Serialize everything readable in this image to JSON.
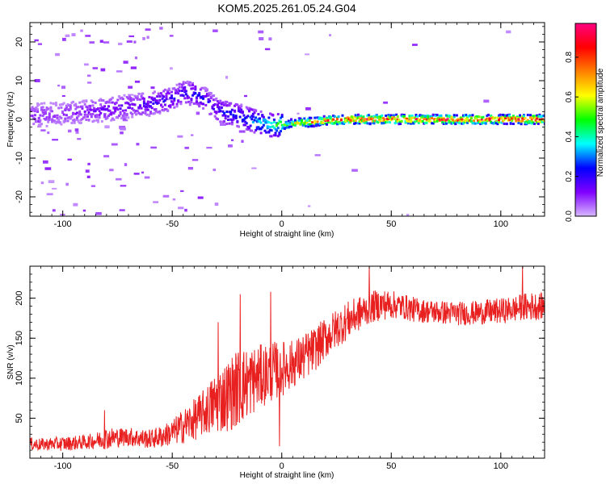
{
  "chart_data": [
    {
      "type": "heatmap",
      "title": "KOM5.2025.261.05.24.G04",
      "xlabel": "Height of straight line (km)",
      "ylabel": "Frequency (Hz)",
      "xlim": [
        -115,
        120
      ],
      "ylim": [
        -25,
        25
      ],
      "xticks": [
        -100,
        -50,
        0,
        50,
        100
      ],
      "yticks": [
        -20,
        -10,
        0,
        10,
        20
      ],
      "grid": false,
      "colorbar": {
        "label": "Normalized spectral amplitude",
        "range": [
          0,
          0.97
        ],
        "ticks": [
          "0.0",
          "0.2",
          "0.4",
          "0.6",
          "0.8"
        ],
        "colormap": [
          "#ff0080",
          "#ff0000",
          "#ff8000",
          "#ffff00",
          "#00ff00",
          "#00ffff",
          "#0000ff",
          "#8000ff",
          "#d8b8ff"
        ]
      },
      "ridge": {
        "name": "",
        "x": [
          -115,
          -100,
          -90,
          -80,
          -70,
          -60,
          -50,
          -45,
          -40,
          -35,
          -30,
          -25,
          -20,
          -15,
          -10,
          -5,
          0,
          5,
          10,
          20,
          30,
          50,
          70,
          90,
          110,
          120
        ],
        "y": [
          1.0,
          1.5,
          2.0,
          2.5,
          3.5,
          4.0,
          5.5,
          7.0,
          6.5,
          5.0,
          2.5,
          1.5,
          1.0,
          0.0,
          -1.0,
          -1.5,
          -1.5,
          -1.0,
          -0.8,
          -0.3,
          0.0,
          0.0,
          0.0,
          0.0,
          0.0,
          0.0
        ],
        "amplitude": [
          0.1,
          0.1,
          0.12,
          0.15,
          0.15,
          0.18,
          0.2,
          0.2,
          0.22,
          0.2,
          0.2,
          0.25,
          0.25,
          0.3,
          0.35,
          0.45,
          0.5,
          0.6,
          0.7,
          0.8,
          0.85,
          0.85,
          0.85,
          0.9,
          0.9,
          0.9
        ]
      }
    },
    {
      "type": "line",
      "title": "",
      "xlabel": "Height of straight line (km)",
      "ylabel": "SNR (v/v)",
      "xlim": [
        -115,
        120
      ],
      "ylim": [
        0,
        240
      ],
      "xticks": [
        -100,
        -50,
        0,
        50,
        100
      ],
      "yticks": [
        50,
        100,
        150,
        200
      ],
      "grid": false,
      "color": "#e82020",
      "series": [
        {
          "name": "",
          "x": [
            -115,
            -110,
            -105,
            -100,
            -95,
            -90,
            -85,
            -80,
            -75,
            -70,
            -65,
            -60,
            -55,
            -50,
            -45,
            -40,
            -35,
            -30,
            -25,
            -20,
            -15,
            -10,
            -5,
            0,
            5,
            10,
            15,
            20,
            25,
            30,
            35,
            40,
            45,
            50,
            55,
            60,
            65,
            70,
            75,
            80,
            85,
            90,
            95,
            100,
            105,
            110,
            115,
            120
          ],
          "y": [
            18,
            17,
            18,
            18,
            19,
            20,
            22,
            25,
            26,
            27,
            25,
            24,
            27,
            32,
            40,
            48,
            58,
            70,
            78,
            88,
            95,
            102,
            108,
            112,
            118,
            126,
            136,
            150,
            162,
            172,
            180,
            188,
            192,
            192,
            190,
            186,
            184,
            183,
            182,
            181,
            181,
            182,
            183,
            184,
            186,
            188,
            190,
            190
          ],
          "noise": [
            8,
            8,
            8,
            9,
            9,
            9,
            10,
            14,
            12,
            12,
            12,
            12,
            14,
            16,
            22,
            26,
            30,
            40,
            45,
            50,
            45,
            40,
            38,
            35,
            30,
            30,
            28,
            26,
            25,
            24,
            22,
            20,
            20,
            18,
            16,
            16,
            15,
            15,
            15,
            15,
            15,
            15,
            16,
            16,
            16,
            18,
            18,
            16
          ],
          "spikes": [
            {
              "x": -81,
              "y": 60
            },
            {
              "x": -29,
              "y": 170
            },
            {
              "x": -19,
              "y": 205
            },
            {
              "x": -5,
              "y": 208
            },
            {
              "x": -1,
              "y": 15
            },
            {
              "x": 40,
              "y": 240
            },
            {
              "x": 110,
              "y": 240
            }
          ]
        }
      ]
    }
  ]
}
